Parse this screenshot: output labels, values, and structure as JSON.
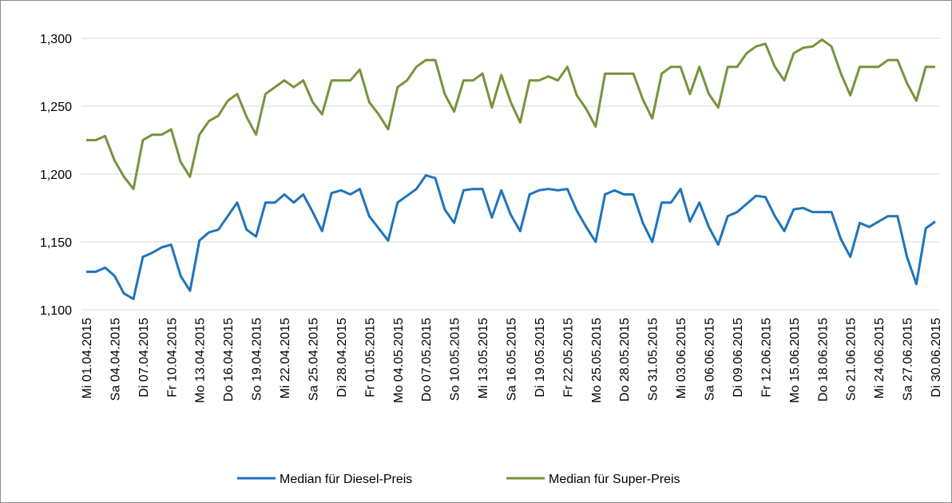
{
  "chart_data": {
    "type": "line",
    "categories": [
      "Mi 01.04.2015",
      null,
      null,
      "Sa 04.04.2015",
      null,
      null,
      "Di 07.04.2015",
      null,
      null,
      "Fr 10.04.2015",
      null,
      null,
      "Mo 13.04.2015",
      null,
      null,
      "Do 16.04.2015",
      null,
      null,
      "So 19.04.2015",
      null,
      null,
      "Mi 22.04.2015",
      null,
      null,
      "Sa 25.04.2015",
      null,
      null,
      "Di 28.04.2015",
      null,
      null,
      "Fr 01.05.2015",
      null,
      null,
      "Mo 04.05.2015",
      null,
      null,
      "Do 07.05.2015",
      null,
      null,
      "So 10.05.2015",
      null,
      null,
      "Mi 13.05.2015",
      null,
      null,
      "Sa 16.05.2015",
      null,
      null,
      "Di 19.05.2015",
      null,
      null,
      "Fr 22.05.2015",
      null,
      null,
      "Mo 25.05.2015",
      null,
      null,
      "Do 28.05.2015",
      null,
      null,
      "So 31.05.2015",
      null,
      null,
      "Mi 03.06.2015",
      null,
      null,
      "Sa 06.06.2015",
      null,
      null,
      "Di 09.06.2015",
      null,
      null,
      "Fr 12.06.2015",
      null,
      null,
      "Mo 15.06.2015",
      null,
      null,
      "Do 18.06.2015",
      null,
      null,
      "So 21.06.2015",
      null,
      null,
      "Mi 24.06.2015",
      null,
      null,
      "Sa 27.06.2015",
      null,
      null,
      "Di 30.06.2015"
    ],
    "series": [
      {
        "name": "Median für Diesel-Preis",
        "color": "#1f74bb",
        "values": [
          1.128,
          1.128,
          1.131,
          1.125,
          1.112,
          1.108,
          1.139,
          1.142,
          1.146,
          1.148,
          1.125,
          1.114,
          1.151,
          1.157,
          1.159,
          1.169,
          1.179,
          1.159,
          1.154,
          1.179,
          1.179,
          1.185,
          1.179,
          1.185,
          1.172,
          1.158,
          1.186,
          1.188,
          1.185,
          1.189,
          1.169,
          1.16,
          1.151,
          1.179,
          1.184,
          1.189,
          1.199,
          1.197,
          1.174,
          1.164,
          1.188,
          1.189,
          1.189,
          1.168,
          1.188,
          1.17,
          1.158,
          1.185,
          1.188,
          1.189,
          1.188,
          1.189,
          1.173,
          1.161,
          1.15,
          1.185,
          1.188,
          1.185,
          1.185,
          1.164,
          1.15,
          1.179,
          1.179,
          1.189,
          1.165,
          1.179,
          1.161,
          1.148,
          1.169,
          1.172,
          1.178,
          1.184,
          1.183,
          1.169,
          1.158,
          1.174,
          1.175,
          1.172,
          1.172,
          1.172,
          1.152,
          1.139,
          1.164,
          1.161,
          1.165,
          1.169,
          1.169,
          1.139,
          1.119,
          1.16,
          1.165
        ]
      },
      {
        "name": "Median für Super-Preis",
        "color": "#77933c",
        "values": [
          1.225,
          1.225,
          1.228,
          1.21,
          1.198,
          1.189,
          1.225,
          1.229,
          1.229,
          1.233,
          1.209,
          1.198,
          1.229,
          1.239,
          1.243,
          1.254,
          1.259,
          1.242,
          1.229,
          1.259,
          1.264,
          1.269,
          1.264,
          1.269,
          1.253,
          1.244,
          1.269,
          1.269,
          1.269,
          1.277,
          1.253,
          1.244,
          1.233,
          1.264,
          1.269,
          1.279,
          1.284,
          1.284,
          1.259,
          1.246,
          1.269,
          1.269,
          1.274,
          1.249,
          1.273,
          1.253,
          1.238,
          1.269,
          1.269,
          1.272,
          1.269,
          1.279,
          1.258,
          1.248,
          1.235,
          1.274,
          1.274,
          1.274,
          1.274,
          1.255,
          1.241,
          1.274,
          1.279,
          1.279,
          1.259,
          1.279,
          1.259,
          1.249,
          1.279,
          1.279,
          1.289,
          1.294,
          1.296,
          1.279,
          1.269,
          1.289,
          1.293,
          1.294,
          1.299,
          1.294,
          1.274,
          1.258,
          1.279,
          1.279,
          1.279,
          1.284,
          1.284,
          1.267,
          1.254,
          1.279,
          1.279
        ]
      }
    ],
    "ylim": [
      1.1,
      1.3
    ],
    "yticks": [
      {
        "value": 1.1,
        "label": "1,100"
      },
      {
        "value": 1.15,
        "label": "1,150"
      },
      {
        "value": 1.2,
        "label": "1,200"
      },
      {
        "value": 1.25,
        "label": "1,250"
      },
      {
        "value": 1.3,
        "label": "1,300"
      }
    ],
    "grid": true,
    "legend": "bottom"
  }
}
